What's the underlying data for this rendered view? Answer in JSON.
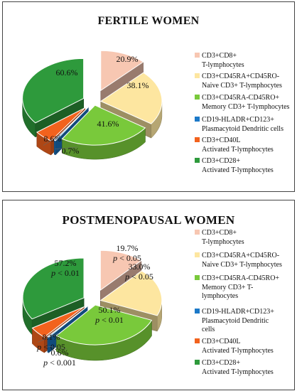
{
  "colors": {
    "cd3cd8": "#f7c7b2",
    "naive": "#fde6a0",
    "memory": "#79c93b",
    "pdc": "#1c79c8",
    "cd40l": "#f2621d",
    "cd28": "#2e9a3c",
    "outline": "#ffffff"
  },
  "chart_data": [
    {
      "type": "pie",
      "title": "FERTILE WOMEN",
      "slices": [
        {
          "key": "cd3cd8",
          "value": 20.9,
          "label": "20.9%",
          "legend": [
            "CD3+CD8+",
            "T-lymphocytes"
          ]
        },
        {
          "key": "naive",
          "value": 38.1,
          "label": "38.1%",
          "legend": [
            "CD3+CD45RA+CD45RO-",
            "Naive CD3+ T-lymphocytes"
          ]
        },
        {
          "key": "memory",
          "value": 41.6,
          "label": "41.6%",
          "legend": [
            "CD3+CD45RA-CD45RO+",
            "Memory CD3+ T-lymphocytes"
          ]
        },
        {
          "key": "pdc",
          "value": 0.7,
          "label": "0.7%",
          "legend": [
            "CD19-HLADR+CD123+",
            "Plasmacytoid Dendritic cells"
          ]
        },
        {
          "key": "cd40l",
          "value": 8.6,
          "label": "8.6%",
          "legend": [
            "CD3+CD40L",
            "Activated T-lymphocytes"
          ]
        },
        {
          "key": "cd28",
          "value": 60.6,
          "label": "60.6%",
          "legend": [
            "CD3+CD28+",
            "Activated T-lymphocytes"
          ]
        }
      ]
    },
    {
      "type": "pie",
      "title": "POSTMENOPAUSAL  WOMEN",
      "slices": [
        {
          "key": "cd3cd8",
          "value": 19.7,
          "label": "19.7%",
          "pvalue": "p < 0.05",
          "legend": [
            "CD3+CD8+",
            "T-lymphocytes"
          ]
        },
        {
          "key": "naive",
          "value": 33.0,
          "label": "33.0%",
          "pvalue": "p < 0.05",
          "legend": [
            "CD3+CD45RA+CD45RO-",
            "Naive CD3+ T-lymphocytes"
          ]
        },
        {
          "key": "memory",
          "value": 50.1,
          "label": "50.1%",
          "pvalue": "p < 0.01",
          "legend": [
            "CD3+CD45RA-CD45RO+",
            "Memory CD3+ T-",
            "lymphocytes"
          ]
        },
        {
          "key": "pdc",
          "value": 0.6,
          "label": "0.6%",
          "pvalue": "p < 0.001",
          "legend": [
            "CD19-HLADR+CD123+",
            "Plasmacytoid Dendritic",
            "cells"
          ]
        },
        {
          "key": "cd40l",
          "value": 8.1,
          "label": "8.1%",
          "pvalue": "p < 0.05",
          "legend": [
            "CD3+CD40L",
            "Activated T-lymphocytes"
          ]
        },
        {
          "key": "cd28",
          "value": 57.2,
          "label": "57.2%",
          "pvalue": "p < 0.01",
          "legend": [
            "CD3+CD28+",
            "Activated T-lymphocytes"
          ]
        }
      ]
    }
  ]
}
